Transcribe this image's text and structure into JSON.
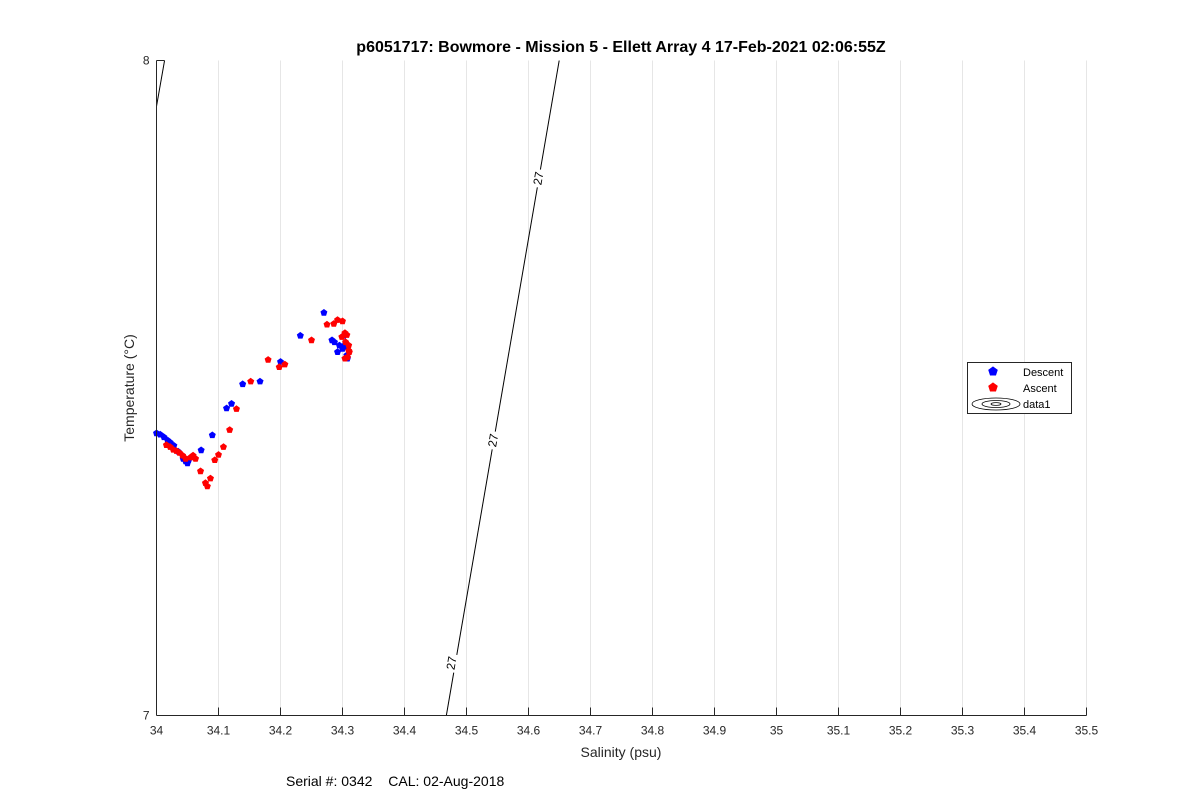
{
  "chart_data": {
    "type": "scatter",
    "title": "p6051717: Bowmore - Mission 5 - Ellett Array 4 17-Feb-2021 02:06:55Z",
    "xlabel": "Salinity (psu)",
    "ylabel": "Temperature (°C)",
    "xlim": [
      34,
      35.5
    ],
    "ylim": [
      7,
      8
    ],
    "xticks": [
      "34",
      "34.1",
      "34.2",
      "34.3",
      "34.4",
      "34.5",
      "34.6",
      "34.7",
      "34.8",
      "34.9",
      "35",
      "35.1",
      "35.2",
      "35.3",
      "35.4",
      "35.5"
    ],
    "yticks": [
      "7",
      "8"
    ],
    "grid": "vertical",
    "legend_position": "right",
    "series": [
      {
        "name": "Descent",
        "color": "#0000ff",
        "x": [
          34.0,
          34.006,
          34.012,
          34.018,
          34.022,
          34.028,
          34.035,
          34.043,
          34.047,
          34.05,
          34.052,
          34.057,
          34.072,
          34.09,
          34.113,
          34.121,
          34.139,
          34.167,
          34.2,
          34.232,
          34.27,
          34.283,
          34.287,
          34.292,
          34.295,
          34.3,
          34.302,
          34.305,
          34.303,
          34.308,
          34.307
        ],
        "y": [
          7.431,
          7.429,
          7.425,
          7.42,
          7.417,
          7.412,
          7.403,
          7.392,
          7.388,
          7.385,
          7.39,
          7.395,
          7.405,
          7.428,
          7.469,
          7.476,
          7.506,
          7.51,
          7.54,
          7.58,
          7.615,
          7.573,
          7.57,
          7.555,
          7.565,
          7.56,
          7.58,
          7.567,
          7.563,
          7.545,
          7.55
        ]
      },
      {
        "name": "Ascent",
        "color": "#ff0000",
        "x": [
          34.016,
          34.022,
          34.027,
          34.032,
          34.037,
          34.042,
          34.047,
          34.055,
          34.059,
          34.063,
          34.071,
          34.079,
          34.082,
          34.087,
          34.094,
          34.1,
          34.108,
          34.118,
          34.129,
          34.152,
          34.18,
          34.198,
          34.207,
          34.275,
          34.286,
          34.292,
          34.3,
          34.304,
          34.299,
          34.307,
          34.31,
          34.311,
          34.304,
          34.308,
          34.31,
          34.305,
          34.25
        ],
        "y": [
          7.413,
          7.41,
          7.406,
          7.404,
          7.401,
          7.397,
          7.392,
          7.394,
          7.397,
          7.392,
          7.373,
          7.355,
          7.35,
          7.362,
          7.39,
          7.398,
          7.41,
          7.436,
          7.468,
          7.51,
          7.543,
          7.532,
          7.536,
          7.597,
          7.598,
          7.604,
          7.602,
          7.584,
          7.578,
          7.581,
          7.565,
          7.555,
          7.545,
          7.547,
          7.557,
          7.57,
          7.573
        ]
      }
    ],
    "contour_label": "27",
    "legend_entries": [
      "Descent",
      "Ascent",
      "data1"
    ]
  },
  "footer": {
    "serial": "Serial #: 0342",
    "cal": "CAL: 02-Aug-2018"
  }
}
